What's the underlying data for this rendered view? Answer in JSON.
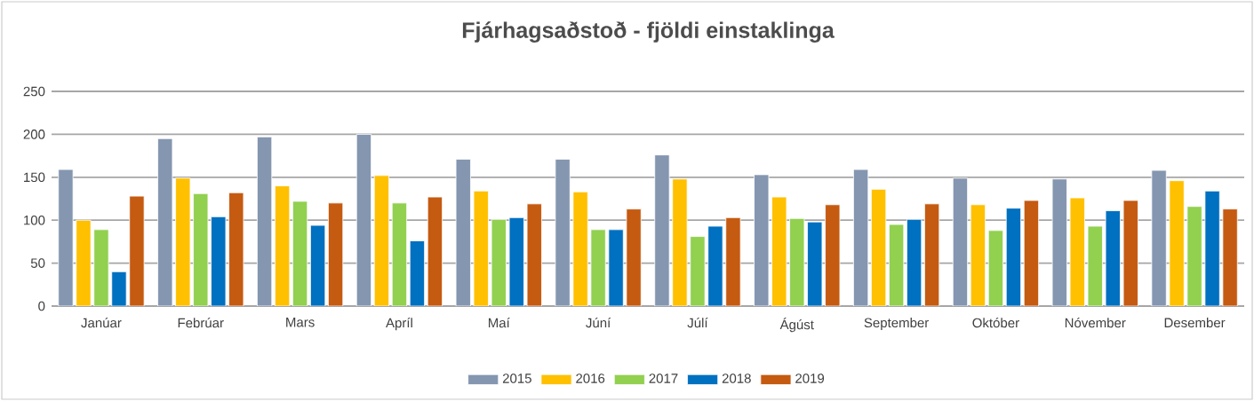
{
  "chart_data": {
    "type": "bar",
    "title": "Fjárhagsaðstoð - fjöldi einstaklinga",
    "categories": [
      "Janúar",
      "Febrúar",
      "Mars",
      "Apríl",
      "Maí",
      "Júní",
      "Júlí",
      "Ágúst",
      "September",
      "Október",
      "Nóvember",
      "Desember"
    ],
    "series": [
      {
        "name": "2015",
        "color": "#8496b0",
        "values": [
          159,
          195,
          197,
          200,
          171,
          171,
          176,
          153,
          159,
          149,
          148,
          158
        ]
      },
      {
        "name": "2016",
        "color": "#ffc000",
        "values": [
          100,
          149,
          140,
          152,
          134,
          133,
          148,
          127,
          136,
          118,
          126,
          146
        ]
      },
      {
        "name": "2017",
        "color": "#92d050",
        "values": [
          89,
          131,
          122,
          120,
          101,
          89,
          81,
          102,
          95,
          88,
          93,
          116
        ]
      },
      {
        "name": "2018",
        "color": "#0070c0",
        "values": [
          40,
          104,
          94,
          76,
          103,
          89,
          93,
          98,
          101,
          114,
          111,
          134
        ]
      },
      {
        "name": "2019",
        "color": "#c55a11",
        "values": [
          128,
          132,
          120,
          127,
          119,
          113,
          103,
          118,
          119,
          123,
          123,
          113
        ]
      }
    ],
    "ylim": [
      0,
      250
    ],
    "yticks": [
      0,
      50,
      100,
      150,
      200,
      250
    ],
    "grid": "y",
    "legend": "bottom"
  }
}
